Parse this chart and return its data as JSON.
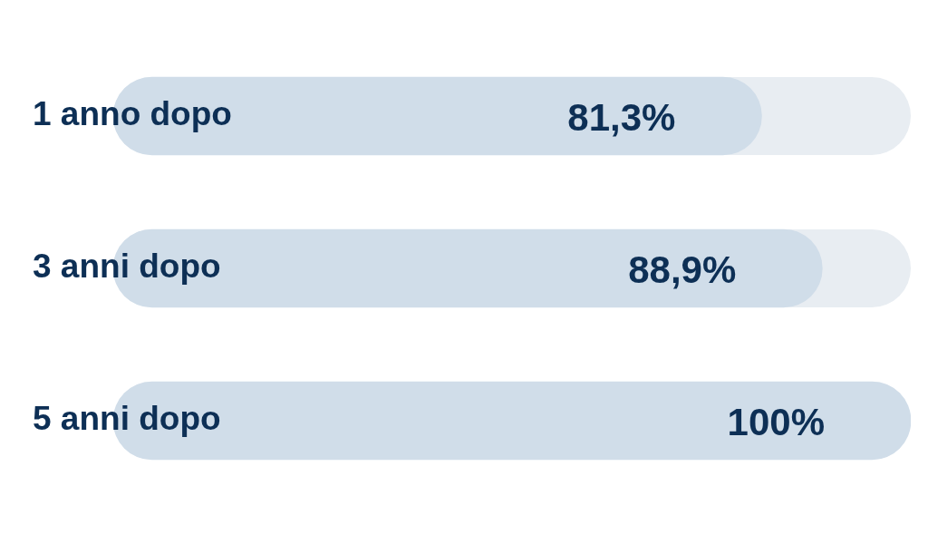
{
  "chart_data": {
    "type": "bar",
    "orientation": "horizontal",
    "categories": [
      "1 anno dopo",
      "3 anni dopo",
      "5 anni dopo"
    ],
    "values": [
      81.3,
      88.9,
      100
    ],
    "value_labels": [
      "81,3%",
      "88,9%",
      "100%"
    ],
    "color": "#d0dde9",
    "xlim": [
      0,
      100
    ],
    "tick_labels": "y"
  }
}
